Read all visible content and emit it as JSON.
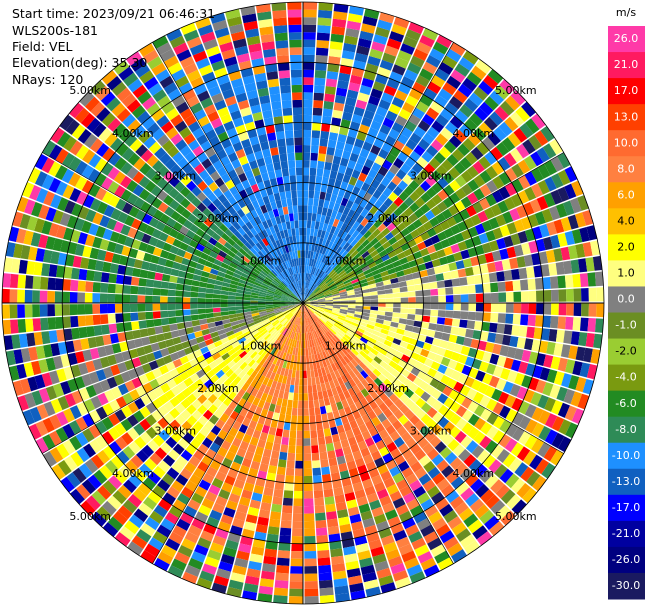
{
  "header": {
    "start_time": "Start time: 2023/09/21 06:46:31",
    "instrument": "WLS200s-181",
    "field": "Field: VEL",
    "elevation": "Elevation(deg): 35.30",
    "nrays": "NRays: 120"
  },
  "chart_data": {
    "type": "heatmap",
    "projection": "polar-ppi",
    "field": "VEL",
    "units": "m/s",
    "n_rays": 120,
    "max_range_km": 5.0,
    "range_rings_km": [
      1.0,
      2.0,
      3.0,
      4.0,
      5.0
    ],
    "ring_labels": [
      "1.00km",
      "2.00km",
      "3.00km",
      "4.00km",
      "5.00km"
    ],
    "grid": true,
    "colorbar": {
      "label": "m/s",
      "placement": "right",
      "tick_labels": [
        "26.0",
        "21.0",
        "17.0",
        "13.0",
        "10.0",
        "8.0",
        "6.0",
        "4.0",
        "2.0",
        "1.0",
        "0.0",
        "-1.0",
        "-2.0",
        "-4.0",
        "-6.0",
        "-8.0",
        "-10.0",
        "-13.0",
        "-17.0",
        "-21.0",
        "-26.0",
        "-30.0"
      ],
      "colors": [
        "#ff3aa8",
        "#ff1a60",
        "#ff0000",
        "#ff4000",
        "#ff6a30",
        "#ff8040",
        "#ffa000",
        "#ffc000",
        "#ffff00",
        "#ffff80",
        "#808080",
        "#6b8e23",
        "#9acd32",
        "#7a9a10",
        "#228b22",
        "#2e8b57",
        "#1e90ff",
        "#1060c0",
        "#0000ff",
        "#0000a0",
        "#000080",
        "#1a1a60"
      ]
    },
    "dominant_pattern": [
      {
        "sector": "north",
        "velocity_m_s": -10.0
      },
      {
        "sector": "west",
        "velocity_m_s": -6.0
      },
      {
        "sector": "east",
        "velocity_m_s": 2.0
      },
      {
        "sector": "south-southeast",
        "velocity_m_s": 10.0
      },
      {
        "sector": "southwest",
        "velocity_m_s": 2.0
      },
      {
        "sector": "outer-rings",
        "velocity_m_s": "noisy/mixed"
      }
    ]
  }
}
